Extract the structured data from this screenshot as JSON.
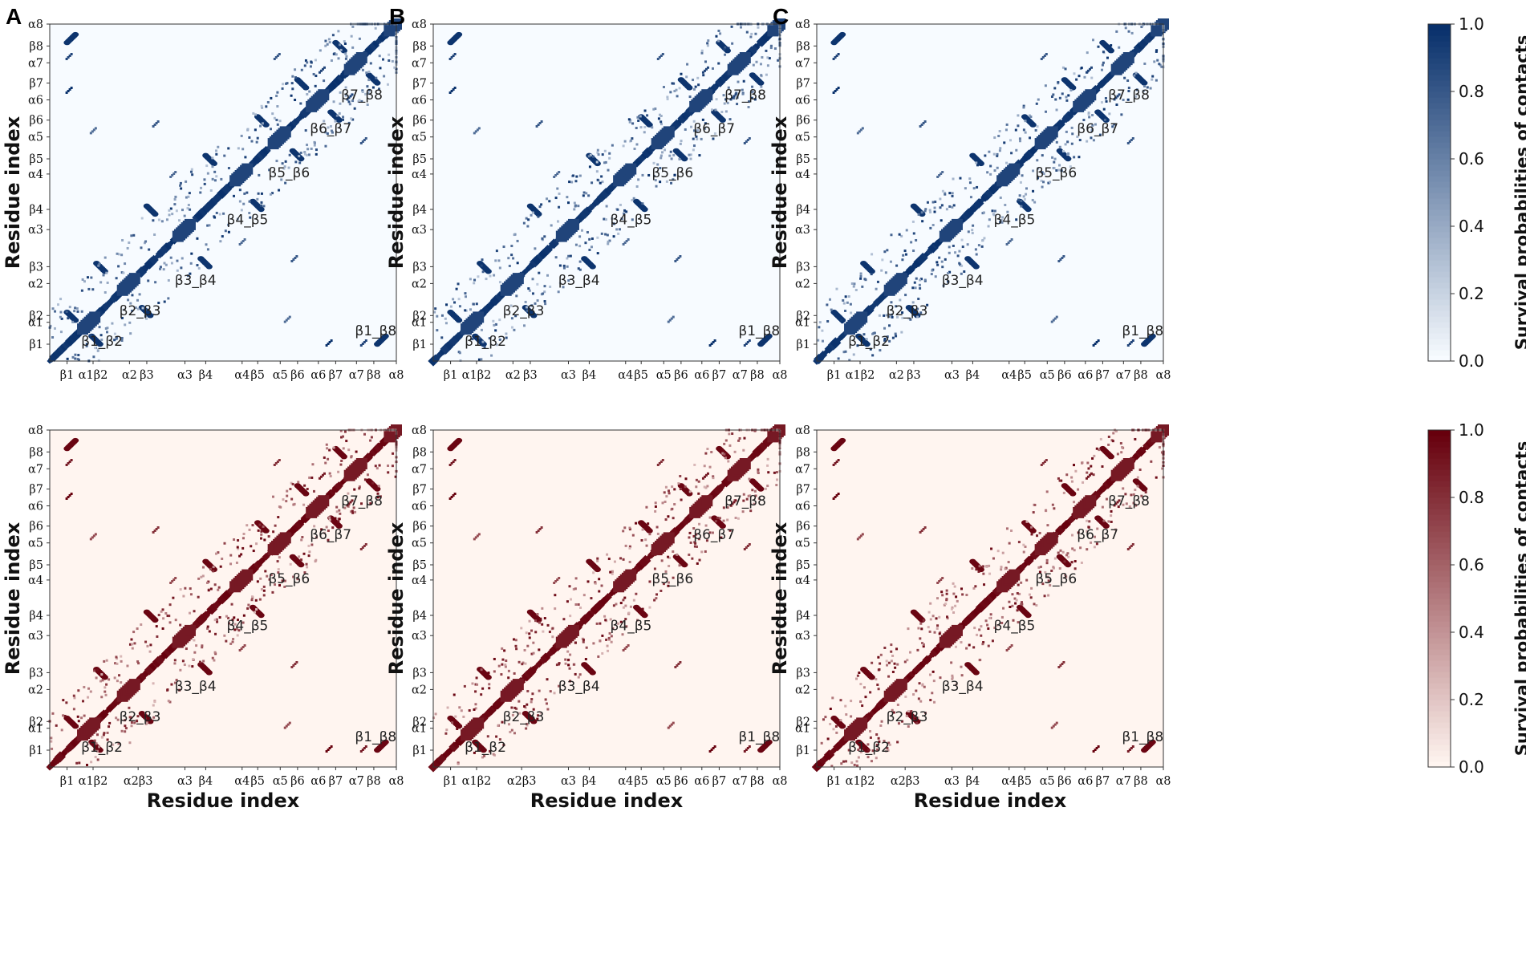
{
  "chart_data": {
    "type": "heatmap",
    "description": "Residue contact survival probability maps, 2 rows x 3 columns",
    "panel_labels": [
      "A",
      "B",
      "C"
    ],
    "secondary_structure_ticks": [
      "β1",
      "α1",
      "β2",
      "α2",
      "β3",
      "α3",
      "β4",
      "α4",
      "β5",
      "α5",
      "β6",
      "α6",
      "β7",
      "α7",
      "β8",
      "α8"
    ],
    "tick_positions_residue_fraction": [
      0.05,
      0.115,
      0.135,
      0.23,
      0.28,
      0.39,
      0.45,
      0.555,
      0.6,
      0.665,
      0.715,
      0.775,
      0.825,
      0.885,
      0.935,
      1.0
    ],
    "x_axis_tick_labels": [
      "β1",
      "α1β2",
      "α2",
      "β3",
      "α3",
      "β4",
      "α4",
      "β5",
      "α5",
      "β6",
      "α6",
      "β7",
      "α7",
      "β8",
      "α8"
    ],
    "x_axis_tick_labels_bottom_row": [
      "β1",
      "α1β2",
      "α2β3",
      "α3",
      "β4",
      "α4",
      "β5",
      "α5",
      "β6",
      "α6",
      "β7",
      "α7",
      "β8",
      "α8"
    ],
    "ylabel": "Residue index",
    "xlabel": "Residue index",
    "colorbar_label": "Survival probabilities of contacts",
    "colorbar_ticks": [
      "0.0",
      "0.2",
      "0.4",
      "0.6",
      "0.8",
      "1.0"
    ],
    "value_range": [
      0.0,
      1.0
    ],
    "rows": [
      {
        "colormap": "Blues",
        "low_color": "#f7fbff",
        "high_color": "#08306b"
      },
      {
        "colormap": "Reds",
        "low_color": "#fff5f0",
        "high_color": "#67000d"
      }
    ],
    "annotations": [
      {
        "label": "β1_β2",
        "res_x": 0.16,
        "res_y": 0.06
      },
      {
        "label": "β2_β3",
        "res_x": 0.27,
        "res_y": 0.15
      },
      {
        "label": "β3_β4",
        "res_x": 0.43,
        "res_y": 0.24
      },
      {
        "label": "β4_β5",
        "res_x": 0.58,
        "res_y": 0.42
      },
      {
        "label": "β5_β6",
        "res_x": 0.7,
        "res_y": 0.56
      },
      {
        "label": "β6_β7",
        "res_x": 0.82,
        "res_y": 0.69
      },
      {
        "label": "β7_β8",
        "res_x": 0.91,
        "res_y": 0.79
      },
      {
        "label": "β1_β8",
        "res_x": 0.95,
        "res_y": 0.09
      }
    ],
    "strand_pairs": [
      {
        "a": "β1",
        "b": "β2",
        "res_i": 0.05,
        "res_j": 0.135
      },
      {
        "a": "β2",
        "b": "β3",
        "res_i": 0.135,
        "res_j": 0.28
      },
      {
        "a": "β3",
        "b": "β4",
        "res_i": 0.28,
        "res_j": 0.45
      },
      {
        "a": "β4",
        "b": "β5",
        "res_i": 0.45,
        "res_j": 0.6
      },
      {
        "a": "β5",
        "b": "β6",
        "res_i": 0.6,
        "res_j": 0.715
      },
      {
        "a": "β6",
        "b": "β7",
        "res_i": 0.715,
        "res_j": 0.825
      },
      {
        "a": "β7",
        "b": "β8",
        "res_i": 0.825,
        "res_j": 0.935
      },
      {
        "a": "β1",
        "b": "β8",
        "res_i": 0.05,
        "res_j": 0.935
      }
    ],
    "long_range_contacts": [
      {
        "res_i": 0.05,
        "res_j": 0.8,
        "value": 1.0
      },
      {
        "res_i": 0.05,
        "res_j": 0.9,
        "value": 0.9
      },
      {
        "res_i": 0.12,
        "res_j": 0.68,
        "value": 0.7
      },
      {
        "res_i": 0.3,
        "res_j": 0.7,
        "value": 0.8
      },
      {
        "res_i": 0.35,
        "res_j": 0.55,
        "value": 0.7
      },
      {
        "res_i": 0.65,
        "res_j": 0.9,
        "value": 0.8
      },
      {
        "res_i": 0.78,
        "res_j": 0.86,
        "value": 0.9
      }
    ]
  }
}
